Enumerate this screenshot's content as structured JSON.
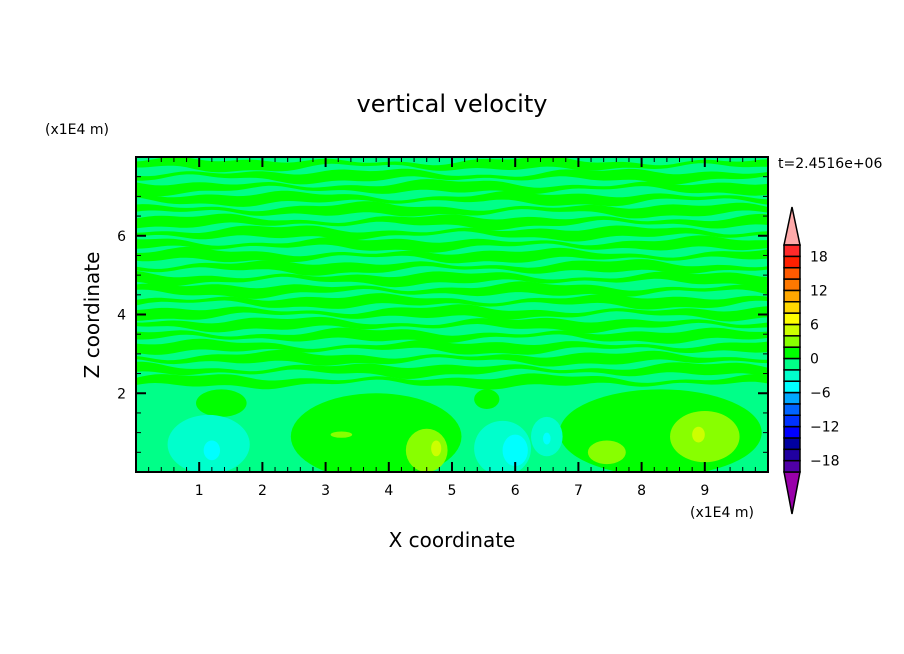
{
  "chart_data": {
    "type": "heatmap",
    "title": "vertical velocity",
    "xlabel": "X coordinate",
    "ylabel": "Z coordinate",
    "x_unit": "(x1E4 m)",
    "y_unit": "(x1E4 m)",
    "time_label": "t=2.4516e+06",
    "xlim": [
      0,
      10
    ],
    "ylim": [
      0,
      8
    ],
    "x_ticks": [
      1,
      2,
      3,
      4,
      5,
      6,
      7,
      8,
      9
    ],
    "y_ticks": [
      2,
      4,
      6
    ],
    "colorbar": {
      "levels": [
        -20,
        -18,
        -16,
        -14,
        -12,
        -10,
        -8,
        -6,
        -4,
        -2,
        0,
        2,
        4,
        6,
        8,
        10,
        12,
        14,
        16,
        18,
        20
      ],
      "tick_labels": [
        "18",
        "12",
        "6",
        "0",
        "-6",
        "-12",
        "-18"
      ],
      "tick_values": [
        18,
        12,
        6,
        0,
        -6,
        -12,
        -18
      ],
      "colors_low_to_high": [
        "#5000a8",
        "#2000a0",
        "#0000a0",
        "#0000ff",
        "#0032ff",
        "#0064ff",
        "#00a8ff",
        "#00ffff",
        "#00ffcc",
        "#00ff88",
        "#00ff00",
        "#88ff00",
        "#ccff00",
        "#ffff00",
        "#ffd800",
        "#ffa800",
        "#ff7800",
        "#ff5a00",
        "#ff2000",
        "#ff2a2a"
      ],
      "over_color": "#ffaaaa",
      "under_color": "#9900aa"
    },
    "background_level_color": "#00ff88",
    "features": [
      {
        "x": 3.8,
        "z": 0.9,
        "rx": 1.35,
        "rz": 1.1,
        "color": "#00ff00"
      },
      {
        "x": 8.3,
        "z": 1.0,
        "rx": 1.6,
        "rz": 1.1,
        "color": "#00ff00"
      },
      {
        "x": 1.35,
        "z": 1.75,
        "rx": 0.4,
        "rz": 0.35,
        "color": "#00ff00"
      },
      {
        "x": 5.55,
        "z": 1.85,
        "rx": 0.2,
        "rz": 0.25,
        "color": "#00ff00"
      },
      {
        "x": 1.15,
        "z": 0.7,
        "rx": 0.65,
        "rz": 0.75,
        "color": "#00ffcc"
      },
      {
        "x": 1.2,
        "z": 0.55,
        "rx": 0.13,
        "rz": 0.25,
        "color": "#00ffff"
      },
      {
        "x": 4.6,
        "z": 0.55,
        "rx": 0.33,
        "rz": 0.55,
        "color": "#88ff00"
      },
      {
        "x": 4.75,
        "z": 0.6,
        "rx": 0.08,
        "rz": 0.2,
        "color": "#ccff00"
      },
      {
        "x": 3.25,
        "z": 0.95,
        "rx": 0.17,
        "rz": 0.08,
        "color": "#88ff00"
      },
      {
        "x": 5.8,
        "z": 0.6,
        "rx": 0.45,
        "rz": 0.7,
        "color": "#00ffcc"
      },
      {
        "x": 6.0,
        "z": 0.55,
        "rx": 0.2,
        "rz": 0.4,
        "color": "#00ffff"
      },
      {
        "x": 6.5,
        "z": 0.9,
        "rx": 0.25,
        "rz": 0.5,
        "color": "#00ffcc"
      },
      {
        "x": 6.5,
        "z": 0.85,
        "rx": 0.06,
        "rz": 0.15,
        "color": "#00ffff"
      },
      {
        "x": 7.45,
        "z": 0.5,
        "rx": 0.3,
        "rz": 0.3,
        "color": "#88ff00"
      },
      {
        "x": 9.0,
        "z": 0.9,
        "rx": 0.55,
        "rz": 0.65,
        "color": "#88ff00"
      },
      {
        "x": 8.9,
        "z": 0.95,
        "rx": 0.1,
        "rz": 0.2,
        "color": "#ccff00"
      }
    ]
  }
}
